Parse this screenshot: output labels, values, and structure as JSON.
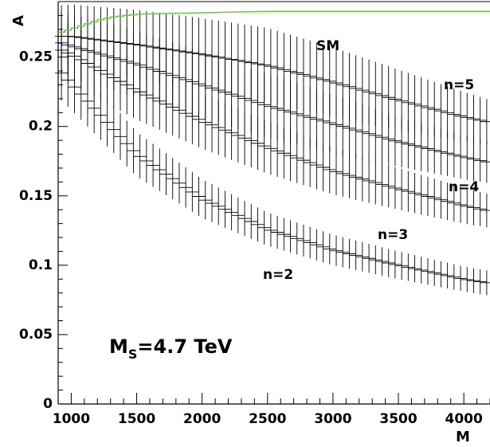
{
  "chart_data": {
    "type": "scatter",
    "title": "",
    "xlabel": "M",
    "ylabel": "A",
    "xlim": [
      900,
      4200
    ],
    "ylim": [
      0,
      0.29
    ],
    "x_ticks": [
      1000,
      1500,
      2000,
      2500,
      3000,
      3500,
      4000
    ],
    "x_tick_labels": [
      "1000",
      "1500",
      "2000",
      "2500",
      "3000",
      "3500",
      "4000"
    ],
    "y_ticks": [
      0,
      0.05,
      0.1,
      0.15,
      0.2,
      0.25
    ],
    "y_tick_labels": [
      "0",
      "0.05",
      "0.1",
      "0.15",
      "0.2",
      "0.25"
    ],
    "grid": false,
    "annotation": {
      "main": "M",
      "sub": "S",
      "rest": "=4.7 TeV"
    },
    "sm_color": "#66cc44",
    "error_bar_color": "#000000",
    "series": [
      {
        "name": "SM",
        "label": "SM",
        "points": [
          [
            900,
            0.268
          ],
          [
            1000,
            0.271
          ],
          [
            1100,
            0.274
          ],
          [
            1200,
            0.277
          ],
          [
            1300,
            0.279
          ],
          [
            1400,
            0.28
          ],
          [
            1500,
            0.281
          ],
          [
            2000,
            0.282
          ],
          [
            2500,
            0.283
          ],
          [
            3000,
            0.283
          ],
          [
            3500,
            0.283
          ],
          [
            4000,
            0.283
          ],
          [
            4200,
            0.283
          ]
        ]
      },
      {
        "name": "n=5",
        "label": "n=5",
        "points": [
          [
            900,
            0.265
          ],
          [
            1000,
            0.265
          ],
          [
            1500,
            0.259
          ],
          [
            2000,
            0.252
          ],
          [
            2500,
            0.244
          ],
          [
            3000,
            0.232
          ],
          [
            3500,
            0.219
          ],
          [
            4000,
            0.207
          ],
          [
            4200,
            0.203
          ]
        ],
        "errors": [
          0.022,
          0.023,
          0.025,
          0.026,
          0.027,
          0.025,
          0.022,
          0.018,
          0.016
        ]
      },
      {
        "name": "n=4",
        "label": "n=4",
        "points": [
          [
            900,
            0.261
          ],
          [
            1000,
            0.258
          ],
          [
            1500,
            0.245
          ],
          [
            2000,
            0.23
          ],
          [
            2500,
            0.215
          ],
          [
            3000,
            0.202
          ],
          [
            3500,
            0.189
          ],
          [
            4000,
            0.178
          ],
          [
            4200,
            0.174
          ]
        ],
        "errors": [
          0.022,
          0.023,
          0.024,
          0.024,
          0.023,
          0.021,
          0.018,
          0.016,
          0.015
        ]
      },
      {
        "name": "n=3",
        "label": "n=3",
        "points": [
          [
            900,
            0.256
          ],
          [
            1000,
            0.252
          ],
          [
            1500,
            0.226
          ],
          [
            2000,
            0.204
          ],
          [
            2500,
            0.185
          ],
          [
            3000,
            0.168
          ],
          [
            3500,
            0.155
          ],
          [
            4000,
            0.143
          ],
          [
            4200,
            0.139
          ]
        ],
        "errors": [
          0.022,
          0.022,
          0.021,
          0.02,
          0.019,
          0.017,
          0.015,
          0.013,
          0.012
        ]
      },
      {
        "name": "n=2",
        "label": "n=2",
        "points": [
          [
            900,
            0.241
          ],
          [
            1000,
            0.231
          ],
          [
            1500,
            0.18
          ],
          [
            2000,
            0.148
          ],
          [
            2500,
            0.126
          ],
          [
            3000,
            0.111
          ],
          [
            3500,
            0.1
          ],
          [
            4000,
            0.09
          ],
          [
            4200,
            0.087
          ]
        ],
        "errors": [
          0.02,
          0.019,
          0.016,
          0.014,
          0.012,
          0.011,
          0.01,
          0.009,
          0.009
        ]
      }
    ]
  }
}
